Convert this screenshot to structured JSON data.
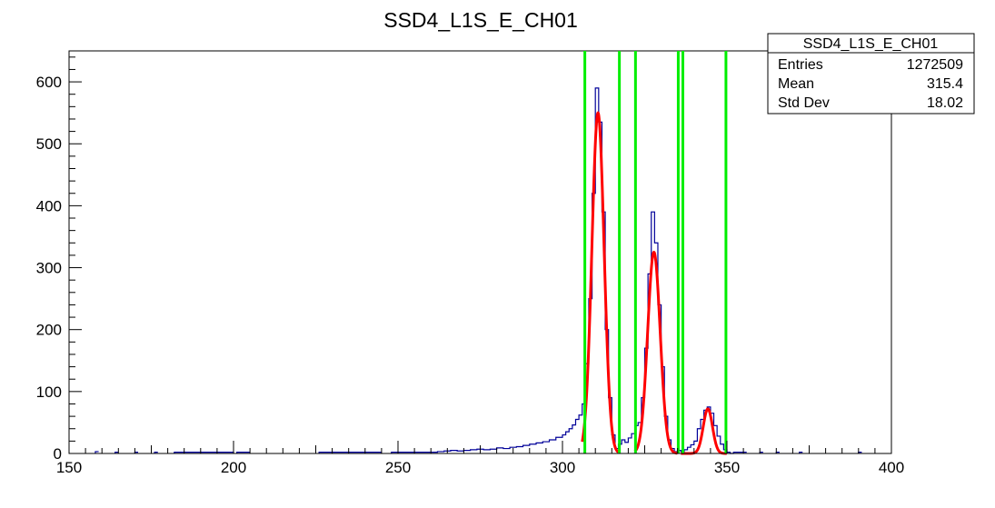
{
  "chart_data": {
    "type": "histogram",
    "title": "SSD4_L1S_E_CH01",
    "xlim": [
      150,
      400
    ],
    "ylim": [
      0,
      650
    ],
    "xticks": [
      150,
      200,
      250,
      300,
      350,
      400
    ],
    "yticks": [
      0,
      100,
      200,
      300,
      400,
      500,
      600
    ],
    "grid": false,
    "stats_box": {
      "name": "SSD4_L1S_E_CH01",
      "rows": [
        {
          "label": "Entries",
          "value": "1272509"
        },
        {
          "label": "Mean",
          "value": "315.4"
        },
        {
          "label": "Std Dev",
          "value": "18.02"
        }
      ],
      "placement": "top-right"
    },
    "histogram": {
      "color": "#000099",
      "bin_width": 1,
      "bins": [
        [
          158,
          0,
          3
        ],
        [
          164,
          0,
          2
        ],
        [
          170,
          0,
          2
        ],
        [
          176,
          0,
          2
        ],
        [
          182,
          200,
          2
        ],
        [
          201,
          205,
          2
        ],
        [
          226,
          245,
          2
        ],
        [
          248,
          262,
          2
        ],
        [
          262,
          264,
          3
        ],
        [
          264,
          266,
          4
        ],
        [
          266,
          268,
          5
        ],
        [
          268,
          270,
          4
        ],
        [
          270,
          272,
          5
        ],
        [
          272,
          274,
          6
        ],
        [
          274,
          276,
          7
        ],
        [
          276,
          278,
          6
        ],
        [
          278,
          280,
          7
        ],
        [
          280,
          282,
          9
        ],
        [
          282,
          284,
          8
        ],
        [
          284,
          286,
          10
        ],
        [
          286,
          288,
          11
        ],
        [
          288,
          290,
          13
        ],
        [
          290,
          292,
          15
        ],
        [
          292,
          294,
          17
        ],
        [
          294,
          296,
          19
        ],
        [
          296,
          298,
          22
        ],
        [
          298,
          300,
          26
        ],
        [
          300,
          301,
          30
        ],
        [
          301,
          302,
          35
        ],
        [
          302,
          303,
          40
        ],
        [
          303,
          304,
          46
        ],
        [
          304,
          305,
          55
        ],
        [
          305,
          306,
          62
        ],
        [
          306,
          307,
          80
        ],
        [
          307,
          308,
          145
        ],
        [
          308,
          309,
          250
        ],
        [
          309,
          310,
          420
        ],
        [
          310,
          311,
          590
        ],
        [
          311,
          312,
          535
        ],
        [
          312,
          313,
          390
        ],
        [
          313,
          314,
          200
        ],
        [
          314,
          315,
          90
        ],
        [
          315,
          316,
          30
        ],
        [
          316,
          317,
          8
        ],
        [
          317,
          318,
          15
        ],
        [
          318,
          319,
          22
        ],
        [
          319,
          320,
          18
        ],
        [
          320,
          321,
          25
        ],
        [
          321,
          322,
          32
        ],
        [
          322,
          323,
          45
        ],
        [
          323,
          324,
          50
        ],
        [
          324,
          325,
          90
        ],
        [
          325,
          326,
          170
        ],
        [
          326,
          327,
          290
        ],
        [
          327,
          328,
          390
        ],
        [
          328,
          329,
          340
        ],
        [
          329,
          330,
          240
        ],
        [
          330,
          331,
          140
        ],
        [
          331,
          332,
          60
        ],
        [
          332,
          333,
          22
        ],
        [
          333,
          334,
          8
        ],
        [
          334,
          335,
          3
        ],
        [
          335,
          336,
          5
        ],
        [
          336,
          337,
          3
        ],
        [
          337,
          338,
          6
        ],
        [
          338,
          339,
          10
        ],
        [
          339,
          340,
          14
        ],
        [
          340,
          341,
          20
        ],
        [
          341,
          342,
          40
        ],
        [
          342,
          343,
          55
        ],
        [
          343,
          344,
          70
        ],
        [
          344,
          345,
          75
        ],
        [
          345,
          346,
          65
        ],
        [
          346,
          347,
          45
        ],
        [
          347,
          348,
          28
        ],
        [
          348,
          349,
          15
        ],
        [
          349,
          350,
          6
        ],
        [
          350,
          351,
          2
        ],
        [
          351,
          352,
          0
        ],
        [
          352,
          356,
          2
        ],
        [
          360,
          0,
          2
        ],
        [
          365,
          0,
          2
        ],
        [
          372,
          0,
          2
        ],
        [
          390,
          0,
          2
        ]
      ]
    },
    "fits": {
      "color": "#ff0000",
      "gaussians": [
        {
          "mean": 310.8,
          "sigma": 1.85,
          "amp": 550
        },
        {
          "mean": 327.8,
          "sigma": 1.9,
          "amp": 325
        },
        {
          "mean": 344.2,
          "sigma": 1.4,
          "amp": 72
        }
      ],
      "ranges": [
        [
          306,
          317
        ],
        [
          322,
          335
        ],
        [
          336,
          350
        ]
      ]
    },
    "markers": {
      "color": "#00ee00",
      "x": [
        306.8,
        317.3,
        322.2,
        335.2,
        336.6,
        349.7
      ]
    }
  }
}
